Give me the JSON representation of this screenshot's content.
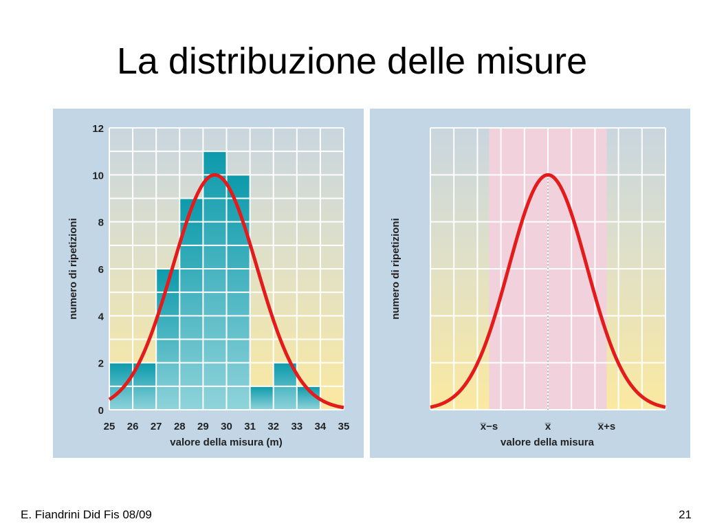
{
  "slide": {
    "title": "La distribuzione delle misure",
    "footer": "E. Fiandrini Did Fis 08/09",
    "page_number": "21"
  },
  "chart_data": [
    {
      "type": "bar",
      "subtype": "histogram with fitted normal curve",
      "bin_edges": [
        25,
        26,
        27,
        28,
        29,
        30,
        31,
        32,
        33,
        34,
        35
      ],
      "values": [
        2,
        2,
        6,
        9,
        11,
        10,
        1,
        2,
        1,
        0
      ],
      "x_ticks": [
        "25",
        "26",
        "27",
        "28",
        "29",
        "30",
        "31",
        "32",
        "33",
        "34",
        "35"
      ],
      "y_ticks": [
        "0",
        "2",
        "4",
        "6",
        "8",
        "10",
        "12"
      ],
      "xlabel": "valore della misura (m)",
      "ylabel": "numero di ripetizioni",
      "xlim": [
        25,
        35
      ],
      "ylim": [
        0,
        12
      ],
      "grid": true,
      "curve": {
        "type": "gaussian",
        "mean": 29.5,
        "sd": 1.8,
        "peak": 10
      },
      "colors": {
        "bars": "#1aa3b3",
        "curve": "#e31b1b",
        "background_top": "#c9d6df",
        "background_bottom": "#fbe9a0"
      }
    },
    {
      "type": "line",
      "subtype": "normal curve with one-sigma band",
      "x_ticks": [
        "x̅−s",
        "x̅",
        "x̅+s"
      ],
      "x_tick_positions": [
        -1,
        0,
        1
      ],
      "xlabel": "valore della misura",
      "ylabel": "numero di ripetizioni",
      "xlim": [
        -2,
        2
      ],
      "ylim": [
        0,
        12
      ],
      "grid": true,
      "curve": {
        "type": "gaussian",
        "mean": 0,
        "sd": 0.666,
        "peak": 10
      },
      "band": {
        "from": -1,
        "to": 1
      },
      "colors": {
        "band": "#f1d2dc",
        "curve": "#e31b1b",
        "background_top": "#c9d6df",
        "background_bottom": "#fbe9a0"
      }
    }
  ]
}
